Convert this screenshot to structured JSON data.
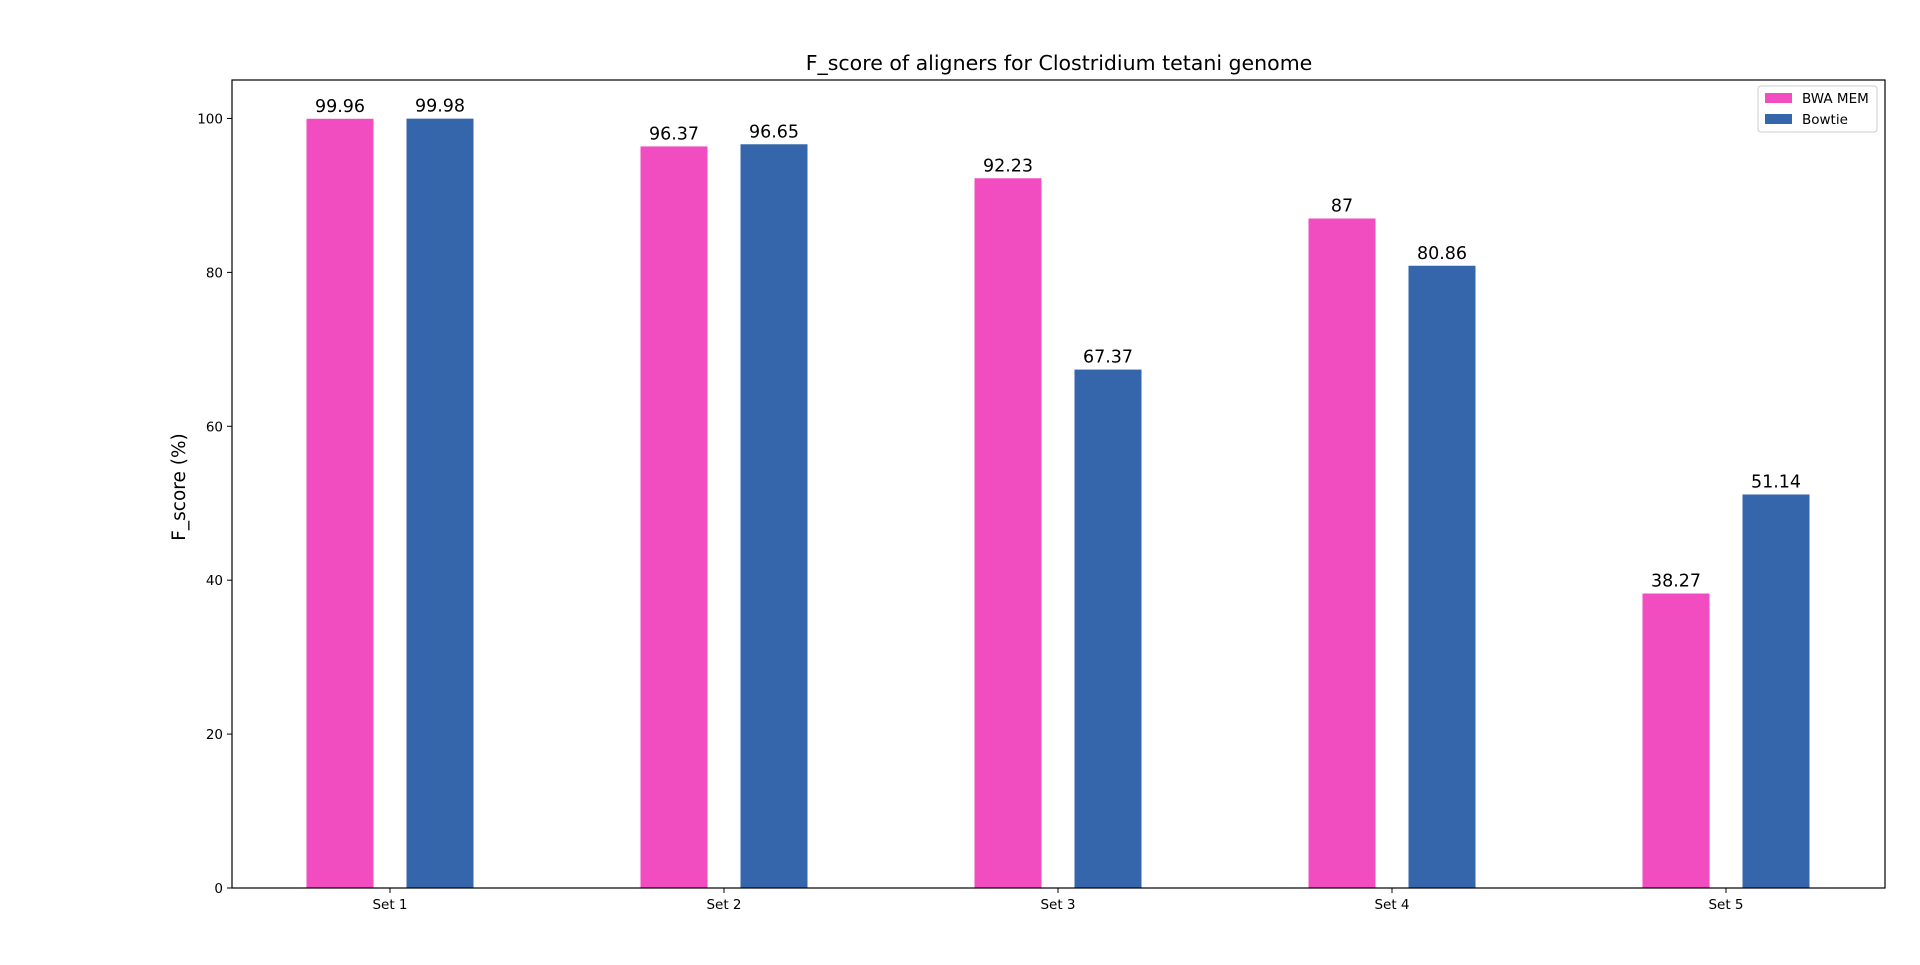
{
  "chart_data": {
    "type": "bar",
    "title": "F_score of aligners for Clostridium tetani genome",
    "xlabel": "",
    "ylabel": "F_score (%)",
    "categories": [
      "Set 1",
      "Set 2",
      "Set 3",
      "Set 4",
      "Set 5"
    ],
    "series": [
      {
        "name": "BWA MEM",
        "color": "#F24DC0",
        "values": [
          99.96,
          96.37,
          92.23,
          87,
          38.27
        ],
        "labels": [
          "99.96",
          "96.37",
          "92.23",
          "87",
          "38.27"
        ]
      },
      {
        "name": "Bowtie",
        "color": "#3566AB",
        "values": [
          99.98,
          96.65,
          67.37,
          80.86,
          51.14
        ],
        "labels": [
          "99.98",
          "96.65",
          "67.37",
          "80.86",
          "51.14"
        ]
      }
    ],
    "ylim": [
      0,
      105
    ],
    "yticks": [
      0,
      20,
      40,
      60,
      80,
      100
    ],
    "ytick_labels": [
      "0",
      "20",
      "40",
      "60",
      "80",
      "100"
    ],
    "grid": false,
    "legend_position": "top-right"
  }
}
